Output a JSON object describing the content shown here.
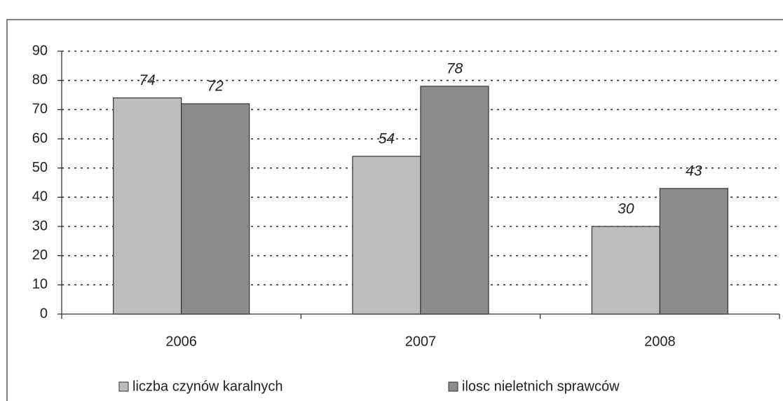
{
  "chart_data": {
    "type": "bar",
    "categories": [
      "2006",
      "2007",
      "2008"
    ],
    "series": [
      {
        "name": "liczba czynów karalnych",
        "color": "#bdbdbd",
        "values": [
          74,
          54,
          30
        ]
      },
      {
        "name": "ilosc nieletnich sprawców",
        "color": "#8c8c8c",
        "values": [
          72,
          78,
          43
        ]
      }
    ],
    "ylim": [
      0,
      90
    ],
    "yticks": [
      0,
      10,
      20,
      30,
      40,
      50,
      60,
      70,
      80,
      90
    ],
    "grid": true,
    "legend": "bottom"
  }
}
